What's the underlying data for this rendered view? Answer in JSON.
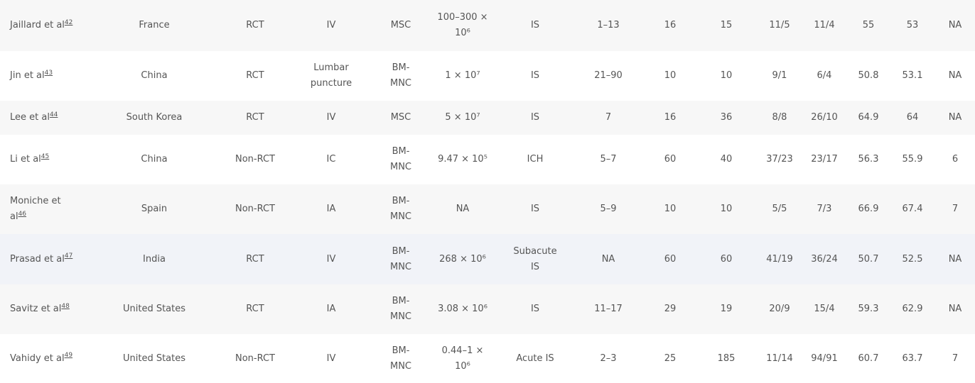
{
  "rows": [
    {
      "author": "Jaillard et al",
      "ref": "42",
      "country": "France",
      "design": "RCT",
      "route": "IV",
      "cell": "MSC",
      "dose": "100–300 ×\n10⁶",
      "type": "IS",
      "time": "1–13",
      "n1": "16",
      "n2": "15",
      "sex1": "11/5",
      "sex2": "11/4",
      "age1": "55",
      "age2": "53",
      "last": "NA"
    },
    {
      "author": "Jin et al",
      "ref": "43",
      "country": "China",
      "design": "RCT",
      "route": "Lumbar\npuncture",
      "cell": "BM-\nMNC",
      "dose": "1 × 10⁷",
      "type": "IS",
      "time": "21–90",
      "n1": "10",
      "n2": "10",
      "sex1": "9/1",
      "sex2": "6/4",
      "age1": "50.8",
      "age2": "53.1",
      "last": "NA"
    },
    {
      "author": "Lee et al",
      "ref": "44",
      "country": "South Korea",
      "design": "RCT",
      "route": "IV",
      "cell": "MSC",
      "dose": "5 × 10⁷",
      "type": "IS",
      "time": "7",
      "n1": "16",
      "n2": "36",
      "sex1": "8/8",
      "sex2": "26/10",
      "age1": "64.9",
      "age2": "64",
      "last": "NA"
    },
    {
      "author": "Li et al",
      "ref": "45",
      "country": "China",
      "design": "Non-RCT",
      "route": "IC",
      "cell": "BM-\nMNC",
      "dose": "9.47 × 10⁵",
      "type": "ICH",
      "time": "5–7",
      "n1": "60",
      "n2": "40",
      "sex1": "37/23",
      "sex2": "23/17",
      "age1": "56.3",
      "age2": "55.9",
      "last": "6"
    },
    {
      "author": "Moniche et\nal",
      "ref": "46",
      "country": "Spain",
      "design": "Non-RCT",
      "route": "IA",
      "cell": "BM-\nMNC",
      "dose": "NA",
      "type": "IS",
      "time": "5–9",
      "n1": "10",
      "n2": "10",
      "sex1": "5/5",
      "sex2": "7/3",
      "age1": "66.9",
      "age2": "67.4",
      "last": "7"
    },
    {
      "author": "Prasad et al",
      "ref": "47",
      "country": "India",
      "design": "RCT",
      "route": "IV",
      "cell": "BM-\nMNC",
      "dose": "268 × 10⁶",
      "type": "Subacute\nIS",
      "time": "NA",
      "n1": "60",
      "n2": "60",
      "sex1": "41/19",
      "sex2": "36/24",
      "age1": "50.7",
      "age2": "52.5",
      "last": "NA"
    },
    {
      "author": "Savitz et al",
      "ref": "48",
      "country": "United States",
      "design": "RCT",
      "route": "IA",
      "cell": "BM-\nMNC",
      "dose": "3.08 × 10⁶",
      "type": "IS",
      "time": "11–17",
      "n1": "29",
      "n2": "19",
      "sex1": "20/9",
      "sex2": "15/4",
      "age1": "59.3",
      "age2": "62.9",
      "last": "NA"
    },
    {
      "author": "Vahidy et al",
      "ref": "49",
      "country": "United States",
      "design": "Non-RCT",
      "route": "IV",
      "cell": "BM-\nMNC",
      "dose": "0.44–1 ×\n10⁶",
      "type": "Acute IS",
      "time": "2–3",
      "n1": "25",
      "n2": "185",
      "sex1": "11/14",
      "sex2": "94/91",
      "age1": "60.7",
      "age2": "63.7",
      "last": "7"
    }
  ],
  "colors": {
    "row_alt": "#f7f7f7",
    "row_hover": "#f1f3f8",
    "text": "#555555"
  }
}
